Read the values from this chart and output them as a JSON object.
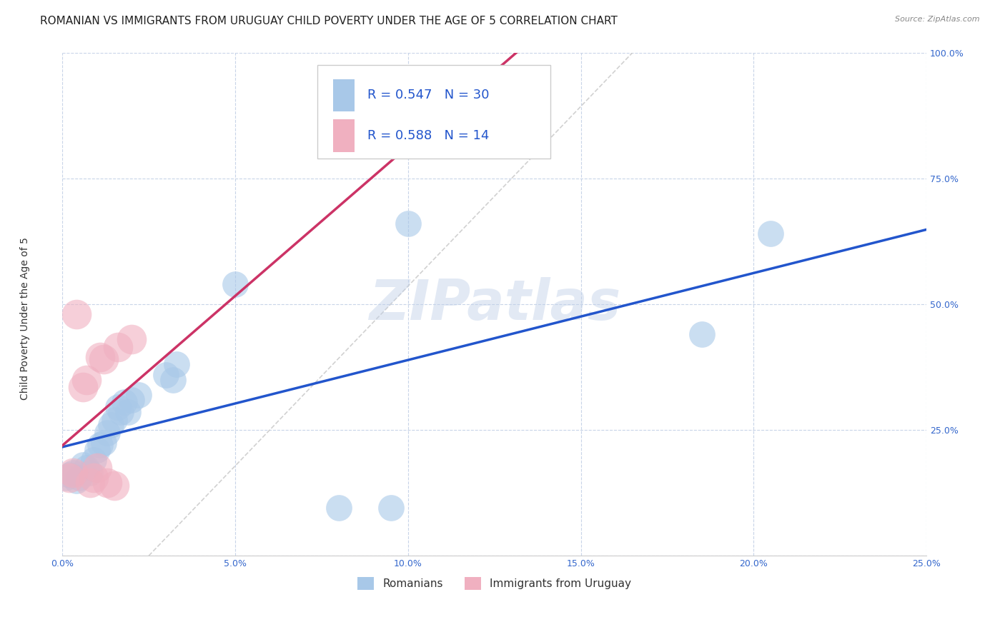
{
  "title": "ROMANIAN VS IMMIGRANTS FROM URUGUAY CHILD POVERTY UNDER THE AGE OF 5 CORRELATION CHART",
  "source": "Source: ZipAtlas.com",
  "ylabel": "Child Poverty Under the Age of 5",
  "xlim": [
    0,
    0.25
  ],
  "ylim": [
    0,
    1.0
  ],
  "xticks": [
    0.0,
    0.05,
    0.1,
    0.15,
    0.2,
    0.25
  ],
  "yticks": [
    0.0,
    0.25,
    0.5,
    0.75,
    1.0
  ],
  "xticklabels": [
    "0.0%",
    "5.0%",
    "10.0%",
    "15.0%",
    "20.0%",
    "25.0%"
  ],
  "yticklabels": [
    "",
    "25.0%",
    "50.0%",
    "75.0%",
    "100.0%"
  ],
  "romanian_x": [
    0.001,
    0.002,
    0.003,
    0.004,
    0.005,
    0.006,
    0.007,
    0.008,
    0.009,
    0.01,
    0.011,
    0.012,
    0.013,
    0.014,
    0.015,
    0.016,
    0.017,
    0.018,
    0.019,
    0.02,
    0.022,
    0.03,
    0.032,
    0.033,
    0.05,
    0.08,
    0.095,
    0.1,
    0.185,
    0.205
  ],
  "romanian_y": [
    0.155,
    0.16,
    0.165,
    0.15,
    0.155,
    0.18,
    0.175,
    0.165,
    0.19,
    0.21,
    0.22,
    0.225,
    0.245,
    0.26,
    0.27,
    0.295,
    0.285,
    0.305,
    0.285,
    0.31,
    0.32,
    0.36,
    0.35,
    0.38,
    0.54,
    0.095,
    0.095,
    0.66,
    0.44,
    0.64
  ],
  "uruguay_x": [
    0.002,
    0.003,
    0.004,
    0.006,
    0.007,
    0.008,
    0.009,
    0.01,
    0.011,
    0.012,
    0.013,
    0.015,
    0.016,
    0.02
  ],
  "uruguay_y": [
    0.155,
    0.165,
    0.48,
    0.335,
    0.35,
    0.145,
    0.155,
    0.175,
    0.395,
    0.39,
    0.145,
    0.14,
    0.415,
    0.43
  ],
  "romanian_color": "#a8c8e8",
  "uruguay_color": "#f0b0c0",
  "regression_blue_color": "#2255cc",
  "regression_pink_color": "#cc3366",
  "diagonal_color": "#cccccc",
  "R_romanian": 0.547,
  "N_romanian": 30,
  "R_uruguay": 0.588,
  "N_uruguay": 14,
  "watermark": "ZIPatlas",
  "legend_label_romanian": "Romanians",
  "legend_label_uruguay": "Immigrants from Uruguay",
  "title_fontsize": 11,
  "axis_label_fontsize": 10,
  "tick_fontsize": 9,
  "scatter_size_romanian": 700,
  "scatter_size_uruguay": 900
}
